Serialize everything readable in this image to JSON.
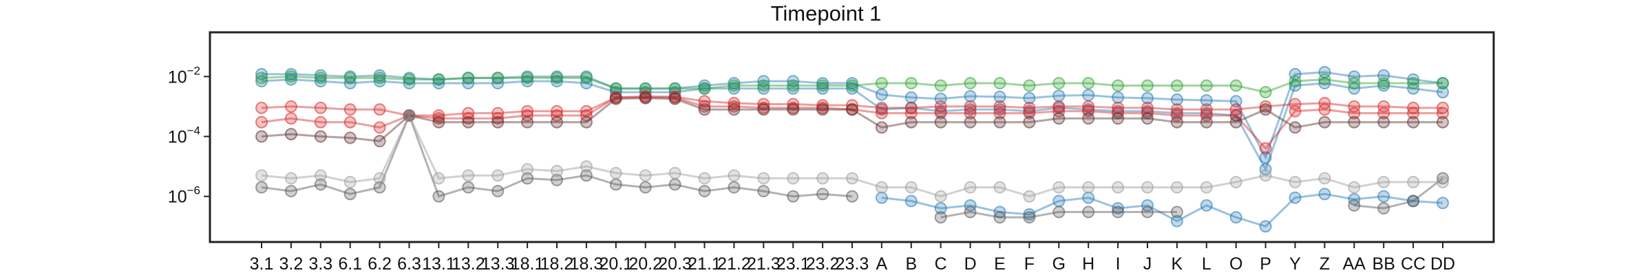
{
  "chart_data": {
    "type": "line",
    "title": "Timepoint 1",
    "xlabel": "",
    "ylabel": "",
    "y_scale": "log",
    "ylim": [
      3e-08,
      0.3
    ],
    "yticks": [
      {
        "base": "10",
        "exp": "−2",
        "value": 0.01
      },
      {
        "base": "10",
        "exp": "−4",
        "value": 0.0001
      },
      {
        "base": "10",
        "exp": "−6",
        "value": 1e-06
      }
    ],
    "grid": false,
    "legend": "none",
    "categories": [
      "3.1",
      "3.2",
      "3.3",
      "6.1",
      "6.2",
      "6.3",
      "13.1",
      "13.2",
      "13.3",
      "18.1",
      "18.2",
      "18.3",
      "20.1",
      "20.2",
      "20.3",
      "21.1",
      "21.2",
      "21.3",
      "23.1",
      "23.2",
      "23.3",
      "A",
      "B",
      "C",
      "D",
      "E",
      "F",
      "G",
      "H",
      "I",
      "J",
      "K",
      "L",
      "O",
      "P",
      "Y",
      "Z",
      "AA",
      "BB",
      "CC",
      "DD"
    ],
    "series": [
      {
        "color": "#1f77b4",
        "values": [
          0.012,
          0.012,
          0.011,
          0.01,
          0.011,
          0.009,
          0.008,
          0.009,
          0.009,
          0.01,
          0.01,
          0.01,
          0.004,
          0.004,
          0.004,
          0.005,
          0.006,
          0.007,
          0.007,
          0.006,
          0.006,
          0.0025,
          0.002,
          0.0018,
          0.0022,
          0.0021,
          0.0019,
          0.0023,
          0.0024,
          0.002,
          0.0019,
          0.0017,
          0.0016,
          0.0015,
          2e-05,
          0.012,
          0.014,
          0.01,
          0.011,
          0.008,
          0.006
        ]
      },
      {
        "color": "#1f77b4",
        "values": [
          0.007,
          0.008,
          0.007,
          0.006,
          0.007,
          0.006,
          0.006,
          0.006,
          0.006,
          0.007,
          0.007,
          0.006,
          0.003,
          0.003,
          0.003,
          0.004,
          0.004,
          0.004,
          0.004,
          0.004,
          0.004,
          0.0008,
          0.0009,
          0.0007,
          0.0008,
          0.0008,
          0.0007,
          0.0009,
          0.0008,
          0.0007,
          0.0007,
          0.0006,
          0.0006,
          0.0005,
          8e-06,
          0.005,
          0.006,
          0.004,
          0.005,
          0.004,
          0.003
        ]
      },
      {
        "color": "#1f77b4",
        "values": [
          null,
          null,
          null,
          null,
          null,
          null,
          null,
          null,
          null,
          null,
          null,
          null,
          null,
          null,
          null,
          null,
          null,
          null,
          null,
          null,
          null,
          9e-07,
          7e-07,
          4e-07,
          5e-07,
          3e-07,
          2.5e-07,
          7e-07,
          9e-07,
          4e-07,
          5e-07,
          1.5e-07,
          5e-07,
          2e-07,
          1e-07,
          9e-07,
          1.2e-06,
          8e-07,
          1e-06,
          7e-07,
          6e-07
        ]
      },
      {
        "color": "#2ca02c",
        "values": [
          0.009,
          0.01,
          0.009,
          0.009,
          0.009,
          0.008,
          0.008,
          0.009,
          0.009,
          0.009,
          0.009,
          0.009,
          0.004,
          0.004,
          0.004,
          0.004,
          0.005,
          0.005,
          0.005,
          0.005,
          0.005,
          0.006,
          0.006,
          0.005,
          0.006,
          0.006,
          0.005,
          0.006,
          0.006,
          0.005,
          0.005,
          0.005,
          0.005,
          0.005,
          0.003,
          0.007,
          0.008,
          0.006,
          0.006,
          0.006,
          0.006
        ]
      },
      {
        "color": "#d62728",
        "values": [
          0.0009,
          0.001,
          0.0009,
          0.0008,
          0.0008,
          0.0005,
          0.0005,
          0.0006,
          0.0006,
          0.0007,
          0.0007,
          0.0007,
          0.002,
          0.0022,
          0.0021,
          0.0015,
          0.0013,
          0.0012,
          0.0012,
          0.0011,
          0.0011,
          0.0009,
          0.0009,
          0.001,
          0.001,
          0.001,
          0.0009,
          0.001,
          0.001,
          0.0009,
          0.0009,
          0.0008,
          0.0008,
          0.0008,
          0.001,
          0.0012,
          0.0013,
          0.001,
          0.001,
          0.0009,
          0.0009
        ]
      },
      {
        "color": "#d62728",
        "values": [
          0.0003,
          0.0004,
          0.0003,
          0.0003,
          0.0002,
          0.0005,
          0.0004,
          0.0004,
          0.0004,
          0.0005,
          0.0005,
          0.0005,
          0.002,
          0.002,
          0.002,
          0.001,
          0.001,
          0.0009,
          0.0009,
          0.0009,
          0.0008,
          0.0006,
          0.0006,
          0.0006,
          0.0006,
          0.0006,
          0.0006,
          0.0007,
          0.0007,
          0.0006,
          0.0006,
          0.0005,
          0.0005,
          0.0005,
          4e-05,
          0.0007,
          0.0008,
          0.0006,
          0.0006,
          0.0006,
          0.0006
        ]
      },
      {
        "color": "#5a2e2e",
        "values": [
          0.0001,
          0.00012,
          0.0001,
          9e-05,
          7e-05,
          0.0005,
          0.0003,
          0.0003,
          0.0003,
          0.0003,
          0.0003,
          0.0003,
          0.0018,
          0.0019,
          0.0018,
          0.0008,
          0.0008,
          0.0008,
          0.0008,
          0.0008,
          0.0008,
          0.0002,
          0.0003,
          0.0003,
          0.0003,
          0.0003,
          0.0003,
          0.0004,
          0.0004,
          0.0004,
          0.0004,
          0.0003,
          0.0003,
          0.0003,
          0.0008,
          0.0002,
          0.0003,
          0.0003,
          0.0003,
          0.0003,
          0.0003
        ]
      },
      {
        "color": "#555555",
        "values": [
          2e-06,
          1.5e-06,
          2.5e-06,
          1.2e-06,
          2e-06,
          0.0005,
          1e-06,
          2e-06,
          1.5e-06,
          4e-06,
          3.5e-06,
          5e-06,
          2.5e-06,
          2e-06,
          2.5e-06,
          1.5e-06,
          2e-06,
          1.5e-06,
          1e-06,
          1.2e-06,
          1e-06,
          null,
          null,
          2e-07,
          3e-07,
          2e-07,
          2e-07,
          3e-07,
          3e-07,
          3e-07,
          3e-07,
          3e-07,
          null,
          null,
          null,
          null,
          null,
          5e-07,
          4e-07,
          7e-07,
          4e-06
        ]
      },
      {
        "color": "#999999",
        "values": [
          5e-06,
          4e-06,
          5e-06,
          3e-06,
          4e-06,
          0.0005,
          4e-06,
          5e-06,
          5e-06,
          8e-06,
          7e-06,
          1e-05,
          6e-06,
          5e-06,
          6e-06,
          4e-06,
          5e-06,
          4e-06,
          4e-06,
          4e-06,
          4e-06,
          2e-06,
          2e-06,
          1e-06,
          2e-06,
          2e-06,
          1e-06,
          2e-06,
          2e-06,
          2e-06,
          2e-06,
          2e-06,
          2e-06,
          3e-06,
          5e-06,
          3e-06,
          4e-06,
          2e-06,
          3e-06,
          3e-06,
          3e-06
        ]
      }
    ]
  }
}
